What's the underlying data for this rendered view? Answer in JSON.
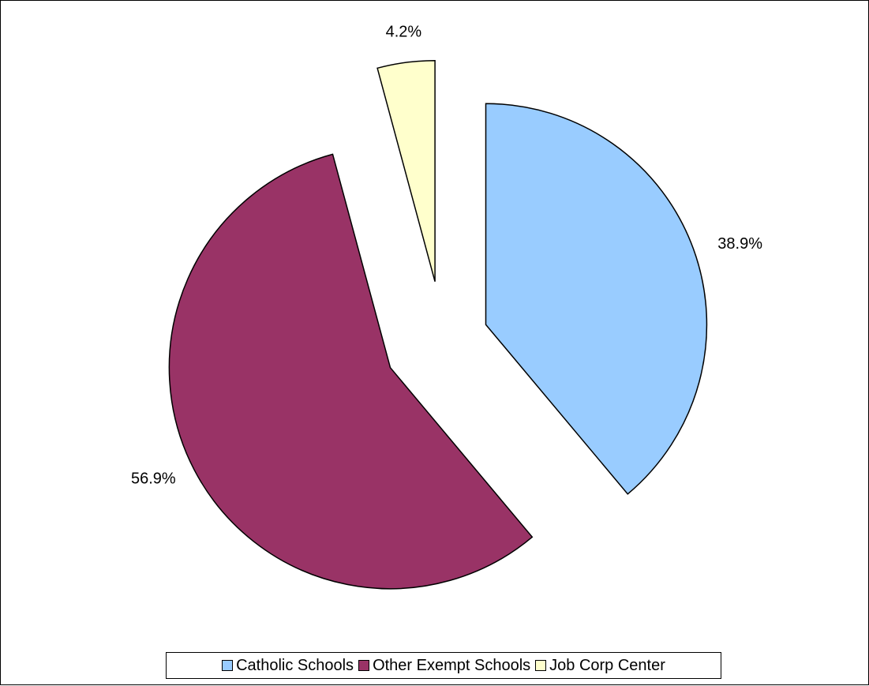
{
  "chart_data": {
    "type": "pie",
    "title": "",
    "slices": [
      {
        "label": "Catholic Schools",
        "value": 38.9,
        "display": "38.9%",
        "color": "#99ccff",
        "exploded": true
      },
      {
        "label": "Other Exempt Schools",
        "value": 56.9,
        "display": "56.9%",
        "color": "#993366",
        "exploded": true
      },
      {
        "label": "Job Corp Center",
        "value": 4.2,
        "display": "4.2%",
        "color": "#ffffcc",
        "exploded": true
      }
    ],
    "start": "12 o'clock, clockwise",
    "legend_position": "bottom"
  }
}
